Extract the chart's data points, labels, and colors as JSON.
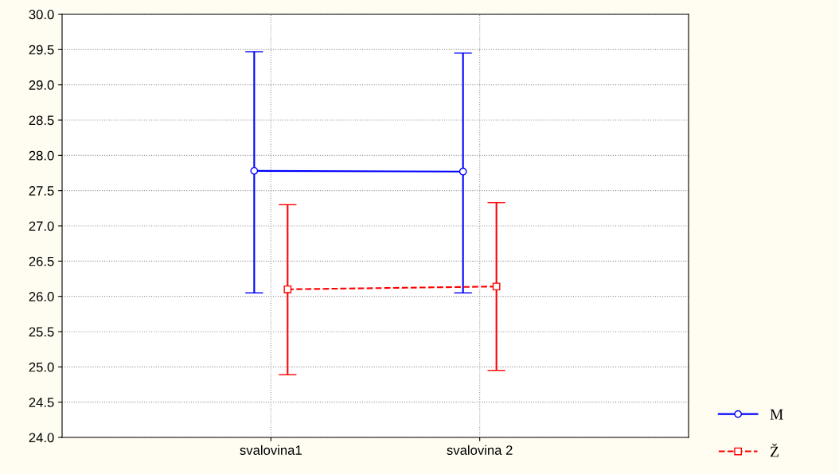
{
  "chart_data": {
    "type": "line",
    "categories": [
      "svalovina1",
      "svalovina 2"
    ],
    "series": [
      {
        "name": "M",
        "color": "#0000ff",
        "values": [
          27.78,
          27.77
        ],
        "errors": [
          [
            26.05,
            29.47
          ],
          [
            26.05,
            29.45
          ]
        ],
        "marker": "circle",
        "line_style": "solid"
      },
      {
        "name": "Ž",
        "color": "#ff0000",
        "values": [
          26.1,
          26.14
        ],
        "errors": [
          [
            24.89,
            27.3
          ],
          [
            24.95,
            27.33
          ]
        ],
        "marker": "square",
        "line_style": "dashed"
      }
    ],
    "ylim": [
      24.0,
      30.0
    ],
    "yticks": [
      {
        "value": 24.0,
        "label": "24.0"
      },
      {
        "value": 24.5,
        "label": "24.5"
      },
      {
        "value": 25.0,
        "label": "25.0"
      },
      {
        "value": 25.5,
        "label": "25.5"
      },
      {
        "value": 26.0,
        "label": "26.0"
      },
      {
        "value": 26.5,
        "label": "26.5"
      },
      {
        "value": 27.0,
        "label": "27.0"
      },
      {
        "value": 27.5,
        "label": "27.5"
      },
      {
        "value": 28.0,
        "label": "28.0"
      },
      {
        "value": 28.5,
        "label": "28.5"
      },
      {
        "value": 29.0,
        "label": "29.0"
      },
      {
        "value": 29.5,
        "label": "29.5"
      },
      {
        "value": 30.0,
        "label": "30.0"
      }
    ],
    "grid": true,
    "legend": "bottom right"
  }
}
